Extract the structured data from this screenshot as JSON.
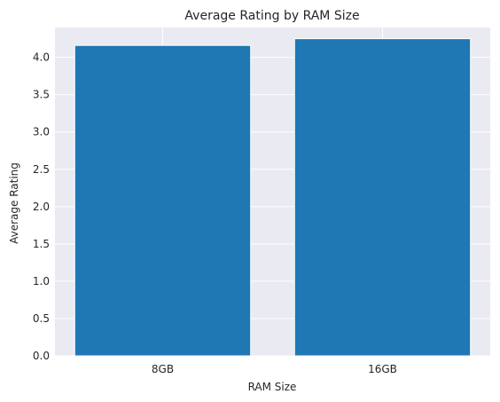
{
  "chart_data": {
    "type": "bar",
    "title": "Average Rating by RAM Size",
    "xlabel": "RAM Size",
    "ylabel": "Average Rating",
    "categories": [
      "8GB",
      "16GB"
    ],
    "values": [
      4.16,
      4.25
    ],
    "ylim": [
      0,
      4.4
    ],
    "yticks": [
      "0.0",
      "0.5",
      "1.0",
      "1.5",
      "2.0",
      "2.5",
      "3.0",
      "3.5",
      "4.0"
    ],
    "grid": true,
    "colors": {
      "bar": "#1f77b4",
      "background": "#eaeaf2",
      "grid": "#ffffff"
    }
  }
}
